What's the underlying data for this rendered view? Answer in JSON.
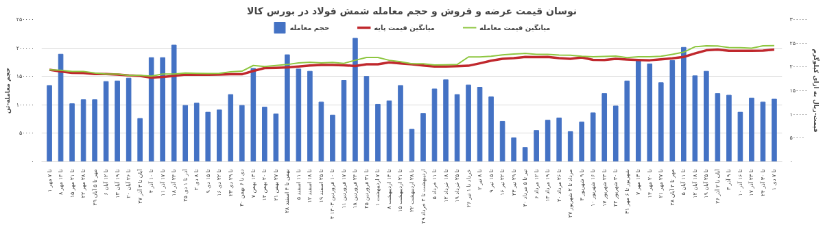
{
  "chart_data": {
    "type": "bar",
    "title": "نوسان قیمت عرضه و فروش و حجم معامله شمش فولاد در بورس کالا",
    "ylabel": "حجم معامله-تن",
    "y2label": "قیمت-ریال به ازای کیلوگرم",
    "categories": [
      "۱ تا ۷ مهر",
      "۸ تا ۱۴ مهر",
      "۱۵ تا ۲۱ مهر",
      "۲۲ تا ۲۸ مهر",
      "۲۹ مهر تا ۵ آبان",
      "۶ تا ۱۲ آبان",
      "۱۳ تا ۱۹ آبان",
      "۲۰ تا ۲۶ آبان",
      "۲۷ آبان تا ۳ آذر",
      "۴ تا ۱۰ آذر",
      "۱۱ تا ۱۷ آذر",
      "۱۸ تا ۲۴ آذر",
      "۲۵ آذر تا ۱ دی",
      "۲ تا ۸ دی",
      "۹ تا ۱۵ دی",
      "۱۶ تا ۲۲ دی",
      "۲۳ تا ۲۹ دی",
      "۳۰ دی تا ۶ بهمن",
      "۷ تا ۱۳ بهمن",
      "۱۴ تا ۲۰ بهمن",
      "۲۱ تا ۲۷ بهمن",
      "۲۸ بهمن تا ۴ اسفند",
      "۵ تا ۱۱ اسفند",
      "۱۲ تا ۱۸ اسفند",
      "۱۹ تا ۲۵ اسفند",
      "۴ تا ۱۰ فروردین ۱۴۰۳",
      "۱۱ تا ۱۷ فروردین",
      "۱۸ تا ۲۴ فروردین",
      "۲۵ تا ۳۱ فروردین",
      "۱ تا ۷ اردیبهشت",
      "۸ تا ۱۴ اردیبهشت",
      "۱۵ تا ۲۱ اردیبهشت",
      "۲۲ تا ۲۸ اردیبهشت",
      "۲۹ اردیبهشت تا ۴ خرداد",
      "۵ تا ۱۱ خرداد",
      "۱۲ تا ۱۸ خرداد",
      "۱۹ تا ۲۵ خرداد",
      "۲۶ خرداد تا ۱ تیر",
      "۲ تا ۸ تیر",
      "۹ تا ۱۵ تیر",
      "۱۶ تا ۲۲ تیر",
      "۲۳ تا ۲۹ تیر",
      "۳۰ تیر تا ۵ مرداد",
      "۶ تا ۱۲ مرداد",
      "۱۳ تا ۱۹ مرداد",
      "۲۰ تا ۲۶ مرداد",
      "۲۷ مرداد تا ۲ شهریور",
      "۳ تا ۹ شهریور",
      "۱۰ تا ۱۶ شهریور",
      "۱۷ تا ۲۳ شهریور",
      "۲۴ تا ۳۰ شهریور",
      "۳۱ شهریور تا ۶ مهر",
      "۷ تا ۱۳ مهر",
      "۱۴ تا ۲۰ مهر",
      "۲۱ تا ۲۷ مهر",
      "۲۸ مهر تا ۴ آبان",
      "۵ تا ۱۱ آبان",
      "۱۲ تا ۱۸ آبان",
      "۱۹ تا ۲۵ آبان",
      "۲۶ آبان تا ۲ آذر",
      "۳ تا ۹ آذر",
      "۱۰ تا ۱۶ آذر",
      "۱۷ تا ۲۳ آذر",
      "۲۴ تا ۳۰ آذر",
      "۱ تا ۷ دی"
    ],
    "series": [
      {
        "name": "حجم معامله",
        "color": "#4472c4",
        "values": [
          134000,
          189000,
          102000,
          109000,
          109000,
          141000,
          142000,
          147000,
          76000,
          183000,
          183000,
          205000,
          99000,
          103000,
          87000,
          91000,
          118000,
          99000,
          164000,
          96000,
          84000,
          188000,
          163000,
          159000,
          105000,
          82000,
          143000,
          217000,
          150000,
          101000,
          107000,
          134000,
          57000,
          85000,
          128000,
          144000,
          118000,
          135000,
          131000,
          114000,
          71000,
          42000,
          25000,
          55000,
          73000,
          77000,
          53000,
          70000,
          86000,
          120000,
          98000,
          142000,
          179000,
          172000,
          139000,
          178000,
          201000,
          151000,
          159000,
          120000,
          117000,
          87000,
          112000,
          105000,
          110000
        ]
      },
      {
        "name": "میانگین قیمت پایه",
        "type": "line",
        "axis": "y2",
        "color": "#c0282d",
        "values": [
          194000,
          190500,
          187500,
          187000,
          185000,
          185000,
          184000,
          182000,
          181000,
          177500,
          179000,
          181000,
          184000,
          183500,
          183500,
          184000,
          184500,
          184500,
          191500,
          197500,
          198000,
          199000,
          201000,
          203000,
          204000,
          204000,
          203500,
          202000,
          205500,
          205500,
          209500,
          207500,
          205500,
          203000,
          201000,
          201000,
          201500,
          202500,
          207500,
          213000,
          217000,
          218500,
          221000,
          220500,
          221000,
          218500,
          217000,
          220000,
          215000,
          214500,
          217000,
          215500,
          214500,
          214000,
          216000,
          218000,
          221000,
          228500,
          235000,
          236500,
          234000,
          234000,
          234000,
          234500,
          236500
        ]
      },
      {
        "name": "میانگین قیمت معامله",
        "type": "line",
        "axis": "y2",
        "color": "#8dc63f",
        "values": [
          194000,
          193000,
          190500,
          190500,
          187000,
          185000,
          185000,
          182000,
          182000,
          180500,
          185000,
          185000,
          187000,
          186500,
          186000,
          186500,
          189500,
          191000,
          203000,
          201000,
          203000,
          205000,
          208500,
          210000,
          208500,
          209500,
          207500,
          214000,
          220000,
          220000,
          214000,
          211000,
          206500,
          206500,
          204000,
          204500,
          205000,
          221000,
          221000,
          222500,
          225500,
          227000,
          228500,
          226500,
          226500,
          225000,
          224500,
          222500,
          221500,
          222000,
          223000,
          219500,
          221500,
          221500,
          222500,
          226500,
          231000,
          242500,
          244500,
          244000,
          241000,
          240500,
          239500,
          244500,
          245000
        ]
      }
    ],
    "ylim": [
      0,
      250000
    ],
    "yticks": [
      {
        "value": 0,
        "label": "۰"
      },
      {
        "value": 50000,
        "label": "۵۰۰۰۰"
      },
      {
        "value": 100000,
        "label": "۱۰۰۰۰۰"
      },
      {
        "value": 150000,
        "label": "۱۵۰۰۰۰"
      },
      {
        "value": 200000,
        "label": "۲۰۰۰۰۰"
      },
      {
        "value": 250000,
        "label": "۲۵۰۰۰۰"
      }
    ],
    "y2lim": [
      0,
      300000
    ],
    "y2ticks": [
      {
        "value": 0,
        "label": "۰"
      },
      {
        "value": 50000,
        "label": "۵۰۰۰۰"
      },
      {
        "value": 100000,
        "label": "۱۰۰۰۰۰"
      },
      {
        "value": 150000,
        "label": "۱۵۰۰۰۰"
      },
      {
        "value": 200000,
        "label": "۲۰۰۰۰۰"
      },
      {
        "value": 250000,
        "label": "۲۵۰۰۰۰"
      },
      {
        "value": 300000,
        "label": "۳۰۰۰۰۰"
      }
    ],
    "grid": "y",
    "legend": "top",
    "marker": "none",
    "line_style": "solid"
  }
}
